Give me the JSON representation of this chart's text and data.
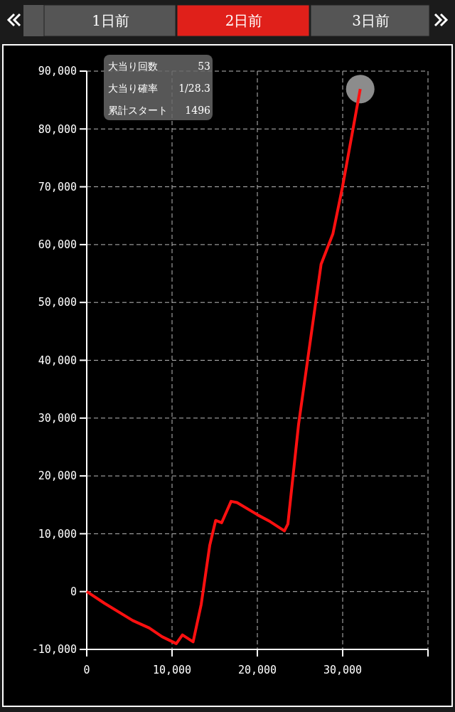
{
  "chart_data": {
    "type": "line",
    "x": [
      0,
      2060,
      5390,
      7330,
      8830,
      10500,
      11220,
      12470,
      13420,
      14420,
      15110,
      15810,
      16920,
      17610,
      20110,
      21500,
      23170,
      23580,
      24830,
      27470,
      28860,
      29970,
      32060
    ],
    "series": [
      {
        "color": "#ff1010",
        "values": [
          0,
          -2000,
          -5000,
          -6300,
          -7800,
          -9000,
          -7500,
          -8700,
          -2200,
          8000,
          12300,
          11900,
          15600,
          15400,
          13200,
          12100,
          10500,
          11700,
          28900,
          56600,
          61900,
          69900,
          86900
        ]
      }
    ],
    "xlim": [
      0,
      40000
    ],
    "xticks": [
      0,
      {
        "value": 10000,
        "label": "10,000"
      },
      {
        "value": 20000,
        "label": "20,000"
      },
      {
        "value": 30000,
        "label": "30,000"
      },
      {
        "value": 40000,
        "label": null
      }
    ],
    "ylim": [
      -10000,
      90000
    ],
    "yticks": [
      {
        "value": -10000,
        "label": "-10,000"
      },
      0,
      {
        "value": 10000,
        "label": "10,000"
      },
      {
        "value": 20000,
        "label": "20,000"
      },
      {
        "value": 30000,
        "label": "30,000"
      },
      {
        "value": 40000,
        "label": "40,000"
      },
      {
        "value": 50000,
        "label": "50,000"
      },
      {
        "value": 60000,
        "label": "60,000"
      },
      {
        "value": 70000,
        "label": "70,000"
      },
      {
        "value": 80000,
        "label": "80,000"
      },
      {
        "value": 90000,
        "label": "90,000"
      }
    ],
    "grid": true,
    "marker": "none",
    "line_style": "solid",
    "annotations": [
      "1日前",
      "2日前",
      "3日前",
      "大当り回数",
      "53",
      "大当り確率",
      "1/28.3",
      "累計スタート",
      "1496"
    ]
  }
}
